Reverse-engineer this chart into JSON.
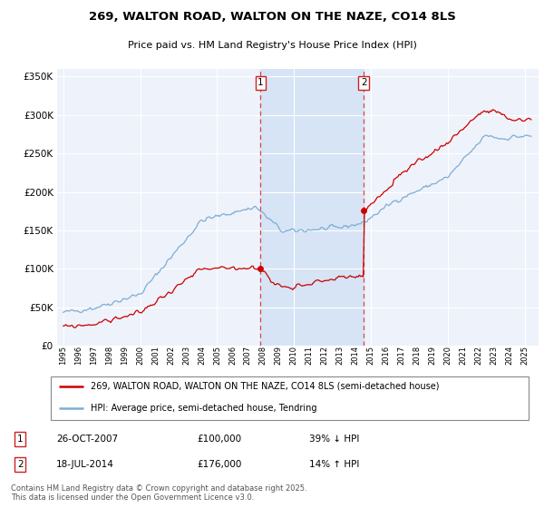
{
  "title": "269, WALTON ROAD, WALTON ON THE NAZE, CO14 8LS",
  "subtitle": "Price paid vs. HM Land Registry's House Price Index (HPI)",
  "ylabel_ticks": [
    "£0",
    "£50K",
    "£100K",
    "£150K",
    "£200K",
    "£250K",
    "£300K",
    "£350K"
  ],
  "ytick_values": [
    0,
    50000,
    100000,
    150000,
    200000,
    250000,
    300000,
    350000
  ],
  "ylim": [
    0,
    360000
  ],
  "sale1_yr": 2007.83,
  "sale1_price": 100000,
  "sale2_yr": 2014.54,
  "sale2_price": 176000,
  "legend_line1": "269, WALTON ROAD, WALTON ON THE NAZE, CO14 8LS (semi-detached house)",
  "legend_line2": "HPI: Average price, semi-detached house, Tendring",
  "ann1_date": "26-OCT-2007",
  "ann1_price": "£100,000",
  "ann1_pct": "39% ↓ HPI",
  "ann2_date": "18-JUL-2014",
  "ann2_price": "£176,000",
  "ann2_pct": "14% ↑ HPI",
  "copyright": "Contains HM Land Registry data © Crown copyright and database right 2025.\nThis data is licensed under the Open Government Licence v3.0.",
  "line_color_red": "#cc0000",
  "line_color_blue": "#7eadd4",
  "background_plot": "#eef2fa",
  "grid_color": "#ffffff",
  "shade_color": "#d6e4f5"
}
